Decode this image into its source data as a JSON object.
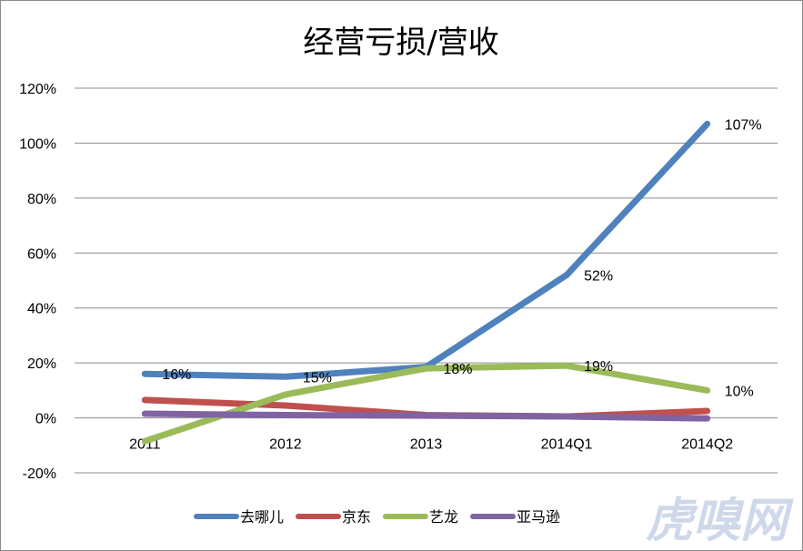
{
  "chart_data": {
    "type": "line",
    "title": "经营亏损/营收",
    "categories": [
      "2011",
      "2012",
      "2013",
      "2014Q1",
      "2014Q2"
    ],
    "y_ticks": [
      "120%",
      "100%",
      "80%",
      "60%",
      "40%",
      "20%",
      "0%",
      "-20%"
    ],
    "ylim": [
      -20,
      120
    ],
    "grid": true,
    "legend_position": "bottom",
    "series": [
      {
        "name": "去哪儿",
        "color": "#4f81bd",
        "values": [
          16,
          15,
          18.5,
          52,
          107
        ],
        "labels": [
          "16%",
          "15%",
          "",
          "52%",
          "107%"
        ]
      },
      {
        "name": "京东",
        "color": "#c0504d",
        "values": [
          6.5,
          4.5,
          1,
          0.5,
          2.5
        ],
        "labels": [
          "",
          "",
          "",
          "",
          ""
        ]
      },
      {
        "name": "艺龙",
        "color": "#9bbb59",
        "values": [
          -8.5,
          8.5,
          18,
          19,
          10
        ],
        "labels": [
          "",
          "",
          "18%",
          "19%",
          "10%"
        ]
      },
      {
        "name": "亚马逊",
        "color": "#8064a2",
        "values": [
          1.5,
          1,
          0.8,
          0.5,
          -0.2
        ],
        "labels": [
          "",
          "",
          "",
          "",
          ""
        ]
      }
    ]
  },
  "watermark": "虎嗅网"
}
